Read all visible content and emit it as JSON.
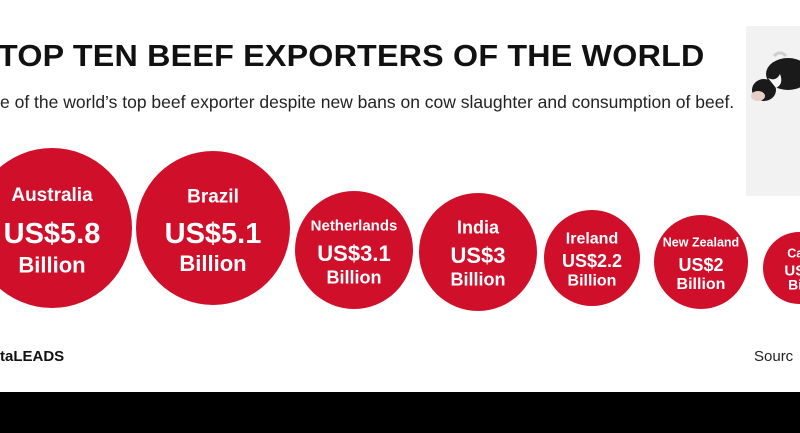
{
  "header": {
    "title": "TOP TEN BEEF EXPORTERS OF THE WORLD",
    "subtitle": "e of the world’s top beef exporter despite new bans on cow slaughter and consumption of beef."
  },
  "chart_data": {
    "type": "bubble",
    "title": "TOP TEN BEEF EXPORTERS OF THE WORLD",
    "unit": "Billion",
    "bubble_color": "#d0102b",
    "items": [
      {
        "country": "Australia",
        "value_text": "US$5.8",
        "unit_text": "Billion",
        "value": 5.8
      },
      {
        "country": "Brazil",
        "value_text": "US$5.1",
        "unit_text": "Billion",
        "value": 5.1
      },
      {
        "country": "Netherlands",
        "value_text": "US$3.1",
        "unit_text": "Billion",
        "value": 3.1
      },
      {
        "country": "India",
        "value_text": "US$3",
        "unit_text": "Billion",
        "value": 3
      },
      {
        "country": "Ireland",
        "value_text": "US$2.2",
        "unit_text": "Billion",
        "value": 2.2
      },
      {
        "country": "New Zealand",
        "value_text": "US$2",
        "unit_text": "Billion",
        "value": 2
      },
      {
        "country": "Can",
        "value_text": "US$",
        "unit_text": "Bill",
        "value": null
      }
    ]
  },
  "footer": {
    "left_text": "taLEADS",
    "right_text": "Sourc"
  },
  "photo": {
    "icon": "cow-photo"
  }
}
